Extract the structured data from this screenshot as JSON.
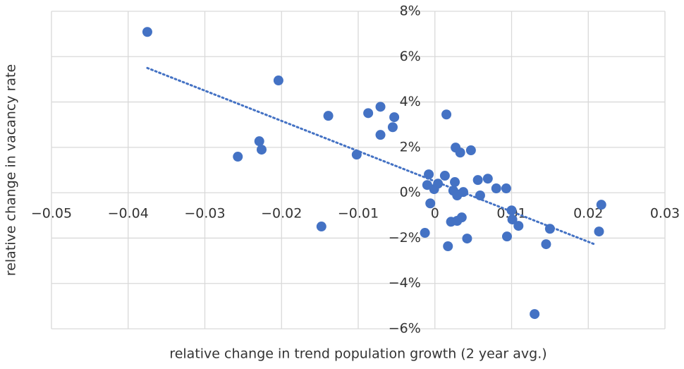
{
  "chart_data": {
    "type": "scatter",
    "x_label": "relative change in trend population growth (2 year avg.)",
    "y_label": "relative change in vacancy rate",
    "xlim": [
      -0.05,
      0.03
    ],
    "ylim": [
      -6,
      8
    ],
    "xticks": [
      {
        "value": -0.05,
        "label": "−0.05"
      },
      {
        "value": -0.04,
        "label": "−0.04"
      },
      {
        "value": -0.03,
        "label": "−0.03"
      },
      {
        "value": -0.02,
        "label": "−0.02"
      },
      {
        "value": -0.01,
        "label": "−0.01"
      },
      0,
      0.01,
      0.02,
      0.03
    ],
    "yticks": [
      {
        "value": -6,
        "label": "−6%"
      },
      {
        "value": -4,
        "label": "−4%"
      },
      {
        "value": -2,
        "label": "−2%"
      },
      {
        "value": 0,
        "label": "0%"
      },
      {
        "value": 2,
        "label": "2%"
      },
      {
        "value": 4,
        "label": "4%"
      },
      {
        "value": 6,
        "label": "6%"
      },
      {
        "value": 8,
        "label": "8%"
      }
    ],
    "grid": true,
    "series": [
      {
        "color": "#4472c4",
        "x": [
          -0.0375,
          -0.0204,
          -0.0257,
          -0.0229,
          -0.0226,
          -0.0139,
          -0.0148,
          -0.0102,
          -0.0087,
          -0.0071,
          -0.0071,
          -0.0055,
          -0.0053,
          -0.0013,
          -0.001,
          -0.0008,
          -0.0006,
          -0.0001,
          0.0004,
          0.0013,
          0.0015,
          0.0017,
          0.0021,
          0.0024,
          0.0026,
          0.0027,
          0.0029,
          0.0029,
          0.0033,
          0.0035,
          0.0037,
          0.0042,
          0.0047,
          0.0056,
          0.0059,
          0.0069,
          0.008,
          0.0093,
          0.0094,
          0.01,
          0.0101,
          0.0109,
          0.013,
          0.0145,
          0.015,
          0.0214,
          0.0217
        ],
        "values": [
          7.09,
          4.95,
          1.59,
          2.27,
          1.9,
          3.39,
          -1.49,
          1.68,
          3.51,
          3.79,
          2.55,
          2.89,
          3.33,
          -1.77,
          0.34,
          0.81,
          -0.47,
          0.16,
          0.4,
          0.75,
          3.45,
          -2.36,
          -1.28,
          0.09,
          0.47,
          1.99,
          -1.24,
          -0.12,
          1.77,
          -1.09,
          0.03,
          -2.02,
          1.87,
          0.56,
          -0.12,
          0.62,
          0.19,
          0.19,
          -1.93,
          -0.78,
          -1.18,
          -1.46,
          -5.35,
          -2.27,
          -1.59,
          -1.71,
          -0.53
        ]
      }
    ],
    "trendline": {
      "color": "#4472c4",
      "x": [
        -0.0375,
        0.0208
      ],
      "values": [
        5.5,
        -2.27
      ]
    }
  }
}
